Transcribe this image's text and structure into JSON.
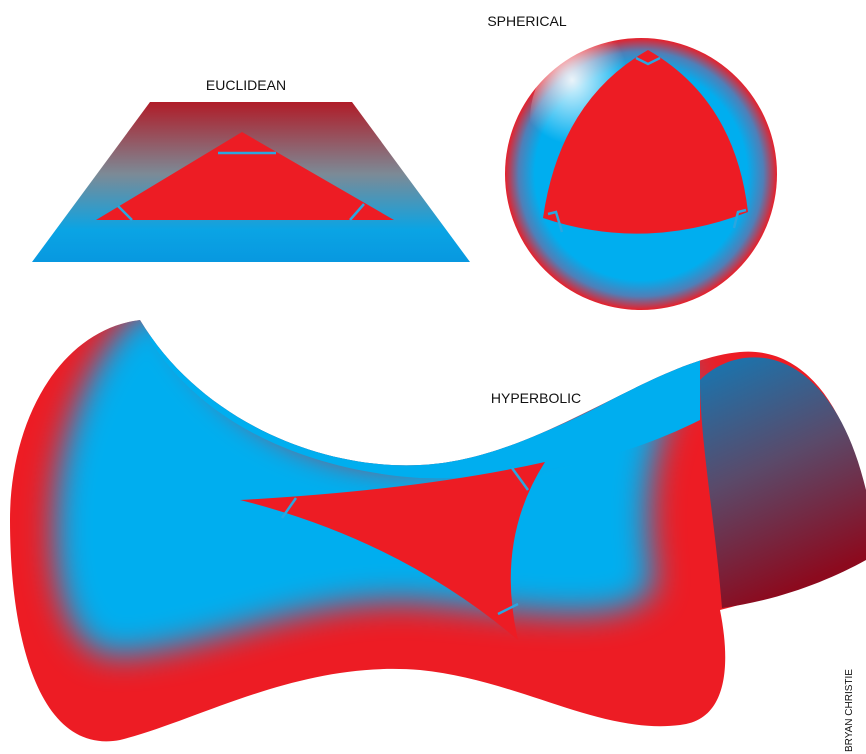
{
  "labels": {
    "euclidean": "EUCLIDEAN",
    "spherical": "SPHERICAL",
    "hyperbolic": "HYPERBOLIC"
  },
  "credit": "BRYAN CHRISTIE"
}
